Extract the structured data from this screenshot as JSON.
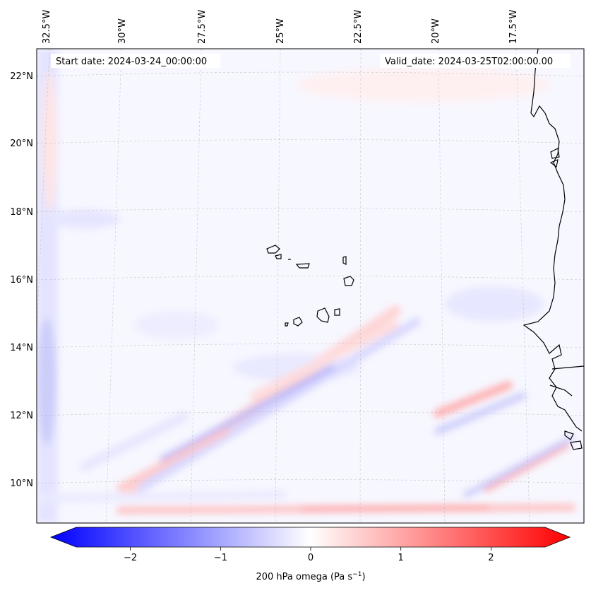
{
  "map": {
    "start_date": "Start date: 2024-03-24_00:00:00",
    "valid_date": "Valid_date: 2024-03-25T02:00:00.00",
    "lon_labels": [
      "32.5°W",
      "30°W",
      "27.5°W",
      "25°W",
      "22.5°W",
      "20°W",
      "17.5°W"
    ],
    "lat_labels": [
      "22°N",
      "20°N",
      "18°N",
      "16°N",
      "14°N",
      "12°N",
      "10°N"
    ],
    "field": "200 hPa omega",
    "region": "Cabo Verde and West African coast"
  },
  "colorbar": {
    "label_prefix": "200 hPa omega (Pa s",
    "label_exp": "−1",
    "label_suffix": ")",
    "ticks": [
      "−2",
      "−1",
      "0",
      "1",
      "2"
    ],
    "tick_values": [
      -2,
      -1,
      0,
      1,
      2
    ],
    "vmin": -2.6,
    "vmax": 2.6,
    "low_color": "#0000ff",
    "mid_color": "#ffffff",
    "high_color": "#ff0000"
  }
}
